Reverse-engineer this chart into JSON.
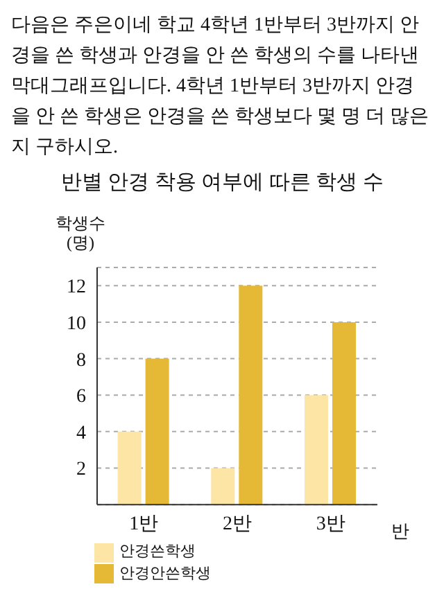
{
  "chart_data": {
    "type": "bar",
    "title": "반별 안경 착용 여부에 따른 학생 수",
    "annotations": [
      "다음은 주은이네 학교 4학년 1반부터 3반까지 안경을 쓴 학생과 안경을 안 쓴 학생의 수를 나타낸 막대그래프입니다. 4학년 1반부터 3반까지 안경을 안 쓴 학생은 안경을 쓴 학생보다 몇 명 더 많은지 구하시오."
    ],
    "xlabel": "반",
    "ylabel": "학생수\n(명)",
    "categories": [
      "1반",
      "2반",
      "3반"
    ],
    "series": [
      {
        "name": "안경쓴학생",
        "color": "#fde5a6",
        "values": [
          4,
          2,
          6
        ]
      },
      {
        "name": "안경안쓴학생",
        "color": "#e5b935",
        "values": [
          8,
          12,
          10
        ]
      }
    ],
    "ylim": [
      0,
      13
    ],
    "yticks": [
      2,
      4,
      6,
      8,
      10,
      12
    ],
    "grid": "y",
    "legend": "bottom left"
  }
}
